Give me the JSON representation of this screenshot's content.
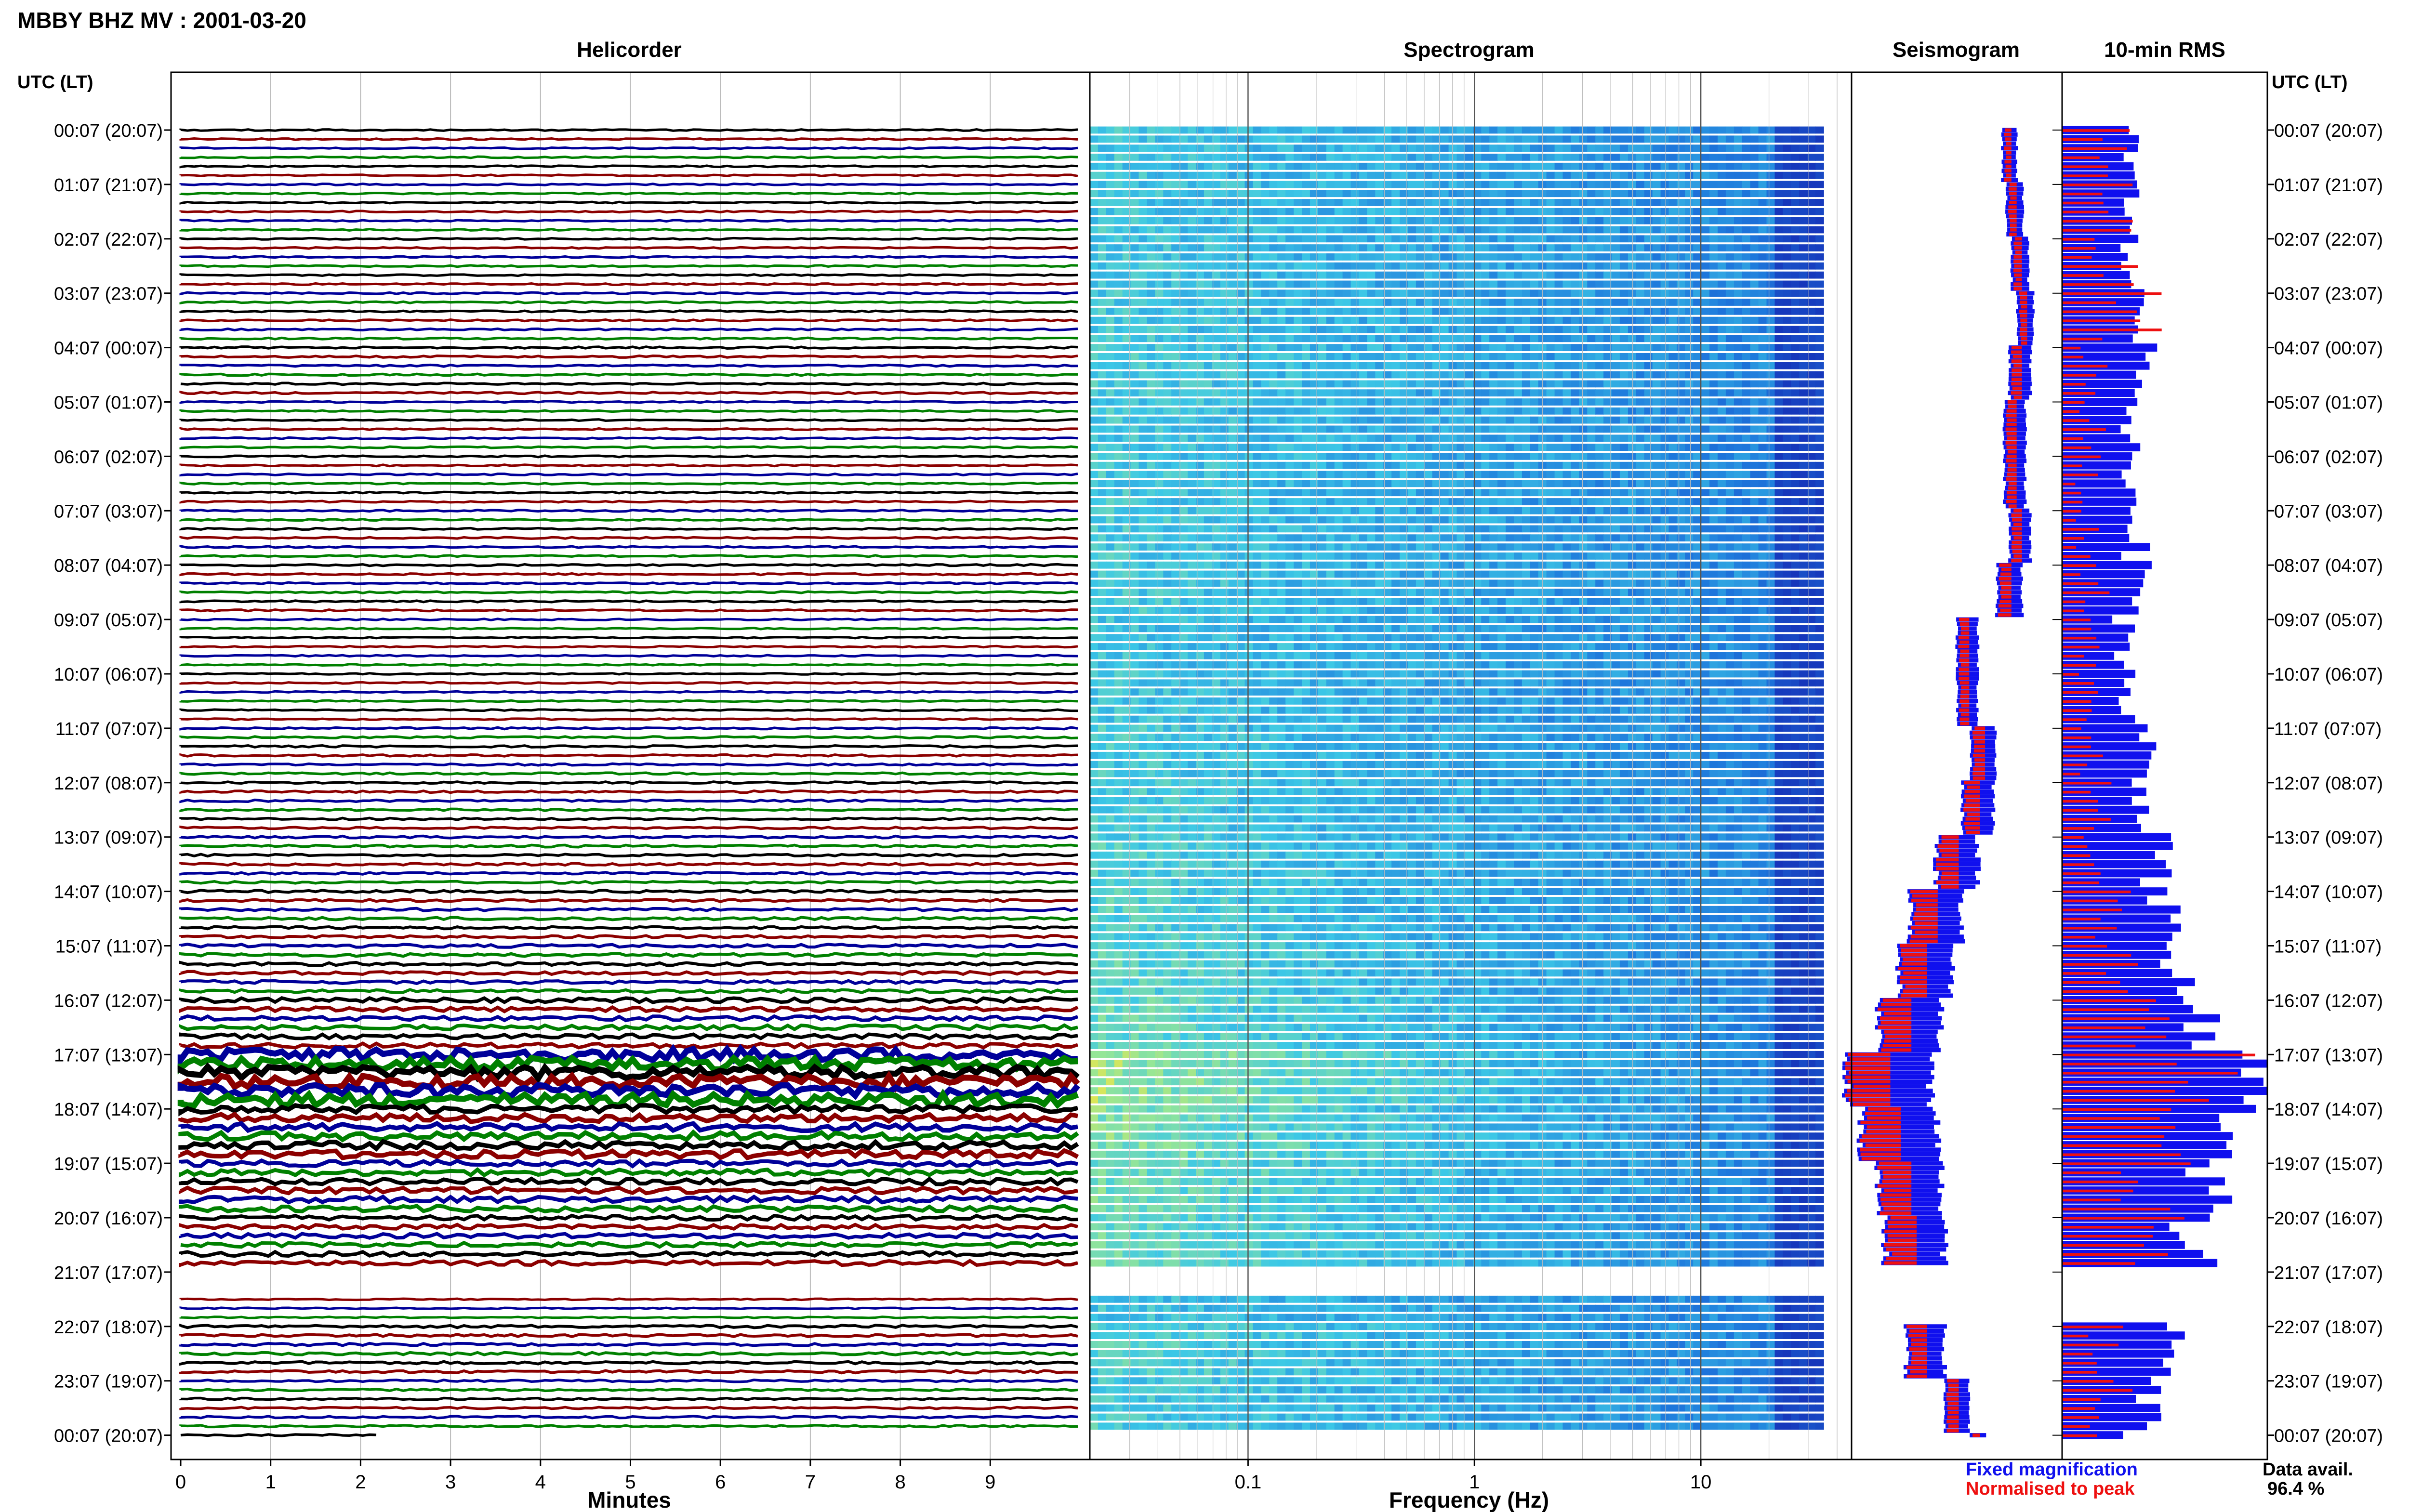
{
  "header": {
    "title": "MBBY BHZ MV : 2001-03-20",
    "left_axis_header": "UTC (LT)",
    "right_axis_header": "UTC (LT)"
  },
  "panels": {
    "helicorder": {
      "title": "Helicorder",
      "xlabel": "Minutes"
    },
    "spectrogram": {
      "title": "Spectrogram",
      "xlabel": "Frequency (Hz)"
    },
    "seismogram": {
      "title": "Seismogram"
    },
    "rms": {
      "title": "10-min RMS"
    }
  },
  "legend": {
    "fixed_label": "Fixed magnification",
    "normalised_label": "Normalised to peak",
    "fixed_color": "#1010ee",
    "normalised_color": "#ee1010"
  },
  "data_avail": {
    "label": "Data avail.",
    "value": "96.4 %"
  },
  "colors": {
    "trace_black": "#000000",
    "trace_red": "#8b0000",
    "trace_blue": "#000099",
    "trace_green": "#008000",
    "rms_fixed": "#1010ee",
    "rms_normalised": "#ee1010",
    "spectrogram_base": "#1e64d2"
  },
  "chart_data": [
    {
      "type": "line",
      "name": "Helicorder",
      "x_unit": "Minutes",
      "xticks": [
        "0",
        "1",
        "2",
        "3",
        "4",
        "5",
        "6",
        "7",
        "8",
        "9"
      ],
      "xlim": [
        0,
        10
      ],
      "rows_per_hour": 6,
      "trace_color_cycle": [
        "black",
        "red",
        "blue",
        "green"
      ],
      "row_labels": [
        "00:07 (20:07)",
        "01:07 (21:07)",
        "02:07 (22:07)",
        "03:07 (23:07)",
        "04:07 (00:07)",
        "05:07 (01:07)",
        "06:07 (02:07)",
        "07:07 (03:07)",
        "08:07 (04:07)",
        "09:07 (05:07)",
        "10:07 (06:07)",
        "11:07 (07:07)",
        "12:07 (08:07)",
        "13:07 (09:07)",
        "14:07 (10:07)",
        "15:07 (11:07)",
        "16:07 (12:07)",
        "17:07 (13:07)",
        "18:07 (14:07)",
        "19:07 (15:07)",
        "20:07 (16:07)",
        "21:07 (17:07)",
        "22:07 (18:07)",
        "23:07 (19:07)",
        "00:07 (20:07)"
      ],
      "data_gap": [
        "20:50",
        "21:30"
      ]
    },
    {
      "type": "heatmap",
      "name": "Spectrogram",
      "x_scale": "log",
      "xticks": [
        "0.1",
        "1",
        "10"
      ],
      "xlim": [
        0.02,
        40
      ],
      "color_scale": [
        "blue",
        "cyan",
        "yellow",
        "red"
      ],
      "strongest_energy": "low frequencies, 16:00-18:30 UTC"
    },
    {
      "type": "line",
      "name": "Seismogram",
      "series": [
        {
          "name": "Fixed magnification",
          "color": "#1010ee"
        },
        {
          "name": "Normalised to peak",
          "color": "#ee1010"
        }
      ],
      "hourly_center": [
        1.5,
        1.55,
        1.6,
        1.65,
        1.6,
        1.55,
        1.55,
        1.6,
        1.5,
        1.1,
        1.1,
        1.25,
        1.2,
        1.0,
        0.8,
        0.7,
        0.55,
        0.35,
        0.45,
        0.55,
        0.6,
        null,
        0.7,
        1.0,
        1.2
      ],
      "hourly_halfwidth": [
        0.07,
        0.08,
        0.08,
        0.08,
        0.1,
        0.1,
        0.1,
        0.1,
        0.12,
        0.1,
        0.1,
        0.12,
        0.15,
        0.2,
        0.25,
        0.25,
        0.3,
        0.4,
        0.35,
        0.3,
        0.28,
        null,
        0.18,
        0.12,
        0.08
      ]
    },
    {
      "type": "bar",
      "name": "10-min RMS",
      "series": [
        {
          "name": "Fixed magnification",
          "color": "#1010ee"
        },
        {
          "name": "Normalised to peak",
          "color": "#ee1010"
        }
      ],
      "hourly_fixed_rms": [
        0.32,
        0.33,
        0.34,
        0.36,
        0.4,
        0.34,
        0.34,
        0.36,
        0.38,
        0.3,
        0.32,
        0.4,
        0.42,
        0.45,
        0.5,
        0.55,
        0.65,
        0.95,
        0.8,
        0.72,
        0.65,
        null,
        0.5,
        0.42,
        0.35
      ],
      "hourly_normalised_rms": [
        0.28,
        0.3,
        0.32,
        0.45,
        0.2,
        0.18,
        0.16,
        0.15,
        0.2,
        0.18,
        0.16,
        0.2,
        0.22,
        0.25,
        0.3,
        0.35,
        0.45,
        0.85,
        0.7,
        0.55,
        0.5,
        null,
        0.3,
        0.3,
        0.2
      ]
    }
  ]
}
